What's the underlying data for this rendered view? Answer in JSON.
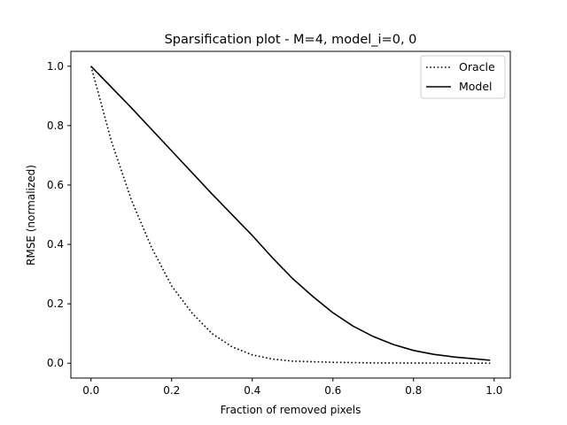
{
  "chart_data": {
    "type": "line",
    "title": "Sparsification plot - M=4, model_i=0, 0",
    "xlabel": "Fraction of removed pixels",
    "ylabel": "RMSE (normalized)",
    "xlim": [
      -0.05,
      1.04
    ],
    "ylim": [
      -0.05,
      1.05
    ],
    "xticks": [
      0.0,
      0.2,
      0.4,
      0.6,
      0.8,
      1.0
    ],
    "xtick_labels": [
      "0.0",
      "0.2",
      "0.4",
      "0.6",
      "0.8",
      "1.0"
    ],
    "yticks": [
      0.0,
      0.2,
      0.4,
      0.6,
      0.8,
      1.0
    ],
    "ytick_labels": [
      "0.0",
      "0.2",
      "0.4",
      "0.6",
      "0.8",
      "1.0"
    ],
    "grid": false,
    "legend_position": "upper right",
    "series": [
      {
        "name": "Oracle",
        "style": "dotted",
        "color": "#000000",
        "x": [
          0.0,
          0.05,
          0.1,
          0.15,
          0.2,
          0.25,
          0.3,
          0.35,
          0.4,
          0.45,
          0.5,
          0.6,
          0.7,
          0.8,
          0.9,
          0.99
        ],
        "y": [
          1.0,
          0.75,
          0.55,
          0.39,
          0.26,
          0.17,
          0.1,
          0.055,
          0.028,
          0.014,
          0.007,
          0.003,
          0.001,
          0.0005,
          0.0002,
          0.0
        ]
      },
      {
        "name": "Model",
        "style": "solid",
        "color": "#000000",
        "x": [
          0.0,
          0.1,
          0.2,
          0.3,
          0.4,
          0.45,
          0.5,
          0.55,
          0.6,
          0.65,
          0.7,
          0.75,
          0.8,
          0.85,
          0.9,
          0.95,
          0.99
        ],
        "y": [
          1.0,
          0.86,
          0.715,
          0.57,
          0.43,
          0.355,
          0.285,
          0.225,
          0.17,
          0.125,
          0.09,
          0.063,
          0.043,
          0.03,
          0.021,
          0.015,
          0.01
        ]
      }
    ]
  }
}
